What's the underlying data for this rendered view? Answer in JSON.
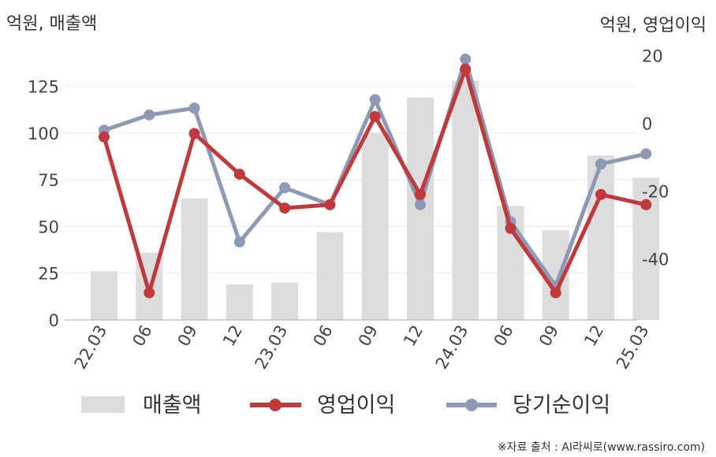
{
  "chart_data": {
    "type": "bar",
    "left_unit_label": "억원, 매출액",
    "right_unit_label": "억원, 영업이익",
    "categories": [
      "22.03",
      "06",
      "09",
      "12",
      "23.03",
      "06",
      "09",
      "12",
      "24.03",
      "06",
      "09",
      "12",
      "25.03"
    ],
    "left_axis": {
      "ylim": [
        0,
        145
      ],
      "ticks": [
        0,
        25,
        50,
        75,
        100,
        125
      ]
    },
    "right_axis": {
      "ylim": [
        -58,
        22
      ],
      "ticks": [
        -40,
        -20,
        0,
        20
      ]
    },
    "series": [
      {
        "name": "매출액",
        "chart": "bar",
        "axis": "left",
        "color": "#dddddd",
        "values": [
          26,
          36,
          65,
          19,
          20,
          47,
          100,
          119,
          128,
          61,
          48,
          88,
          76
        ]
      },
      {
        "name": "영업이익",
        "chart": "line",
        "axis": "right",
        "color": "#c0393b",
        "values": [
          -4,
          -50,
          -3,
          -15,
          -25,
          -24,
          2,
          -21,
          16,
          -31,
          -50,
          -21,
          -24
        ]
      },
      {
        "name": "당기순이익",
        "chart": "line",
        "axis": "right",
        "color": "#8e9ab5",
        "values": [
          -2,
          2.5,
          4.5,
          -35,
          -19,
          -24,
          7,
          -24,
          19,
          -29,
          -48,
          -12,
          -9
        ]
      }
    ],
    "grid": true,
    "legend": "bottom",
    "source": "※자료 출처 : AI라씨로(www.rassiro.com)"
  }
}
